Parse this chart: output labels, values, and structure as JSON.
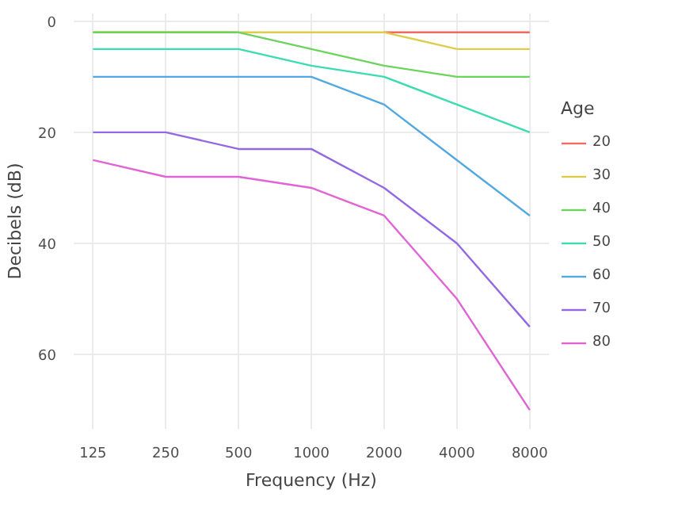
{
  "chart_data": {
    "type": "line",
    "xlabel": "Frequency (Hz)",
    "ylabel": "Decibels (dB)",
    "legend_title": "Age",
    "legend": "right",
    "grid": true,
    "log": "x",
    "x": [
      125,
      250,
      500,
      1000,
      2000,
      4000,
      8000
    ],
    "xlim": [
      104,
      9600
    ],
    "xticks": [
      125,
      250,
      500,
      1000,
      2000,
      4000,
      8000
    ],
    "ylim": [
      73.4,
      -1.4
    ],
    "yticks": [
      0,
      20,
      40,
      60
    ],
    "series": [
      {
        "name": "20",
        "color": "#f06a62",
        "values": [
          null,
          null,
          null,
          null,
          2,
          2,
          2
        ]
      },
      {
        "name": "30",
        "color": "#e0cc4a",
        "values": [
          2,
          2,
          2,
          2,
          2,
          5,
          5
        ]
      },
      {
        "name": "40",
        "color": "#6cd45c",
        "values": [
          2,
          2,
          2,
          5,
          8,
          10,
          10
        ]
      },
      {
        "name": "50",
        "color": "#3ddcb0",
        "values": [
          5,
          5,
          5,
          8,
          10,
          15,
          20
        ]
      },
      {
        "name": "60",
        "color": "#52a8e0",
        "values": [
          10,
          10,
          10,
          10,
          15,
          25,
          35
        ]
      },
      {
        "name": "70",
        "color": "#9468e0",
        "values": [
          20,
          20,
          23,
          23,
          30,
          40,
          55
        ]
      },
      {
        "name": "80",
        "color": "#e064d4",
        "values": [
          25,
          28,
          28,
          30,
          35,
          50,
          70
        ]
      }
    ]
  }
}
